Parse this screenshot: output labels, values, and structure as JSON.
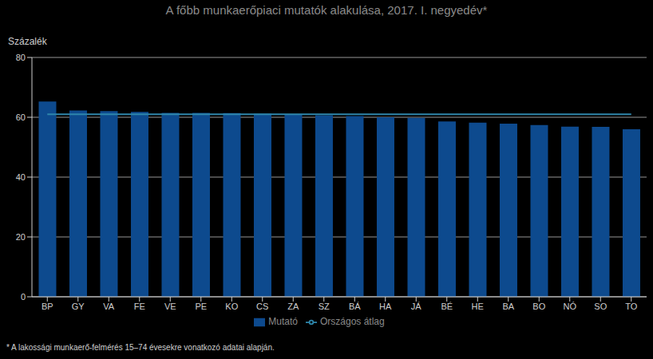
{
  "chart_data": {
    "type": "bar",
    "title": "A főbb munkaerőpiaci mutatók alakulása, 2017. I. negyedév*",
    "y_label": "Százalék",
    "footnote": "* A lakossági munkaerő-felmérés 15–74 évesekre vonatkozó adatai alapján.",
    "categories": [
      "BP",
      "GY",
      "VA",
      "FE",
      "VE",
      "PE",
      "KO",
      "CS",
      "ZA",
      "SZ",
      "BÁ",
      "HA",
      "JÁ",
      "BÉ",
      "HE",
      "BA",
      "BO",
      "NÓ",
      "SO",
      "TO"
    ],
    "series": [
      {
        "name": "Mutató",
        "type": "bar",
        "color": "#0d4a8e",
        "values": [
          65.3,
          62.3,
          62.1,
          61.8,
          61.5,
          61.5,
          61.4,
          61.2,
          60.8,
          60.7,
          60.4,
          60.0,
          59.8,
          58.6,
          58.2,
          57.9,
          57.4,
          56.9,
          56.8,
          56.0
        ]
      },
      {
        "name": "Országos átlag",
        "type": "line",
        "color": "#2e86ab",
        "values": [
          61.0,
          61.0,
          61.0,
          61.0,
          61.0,
          61.0,
          61.0,
          61.0,
          61.0,
          61.0,
          61.0,
          61.0,
          61.0,
          61.0,
          61.0,
          61.0,
          61.0,
          61.0,
          61.0,
          61.0
        ]
      }
    ],
    "ylim": [
      0,
      80
    ],
    "yticks": [
      0,
      20,
      40,
      60,
      80
    ],
    "grid": true,
    "legend": "bottom"
  }
}
